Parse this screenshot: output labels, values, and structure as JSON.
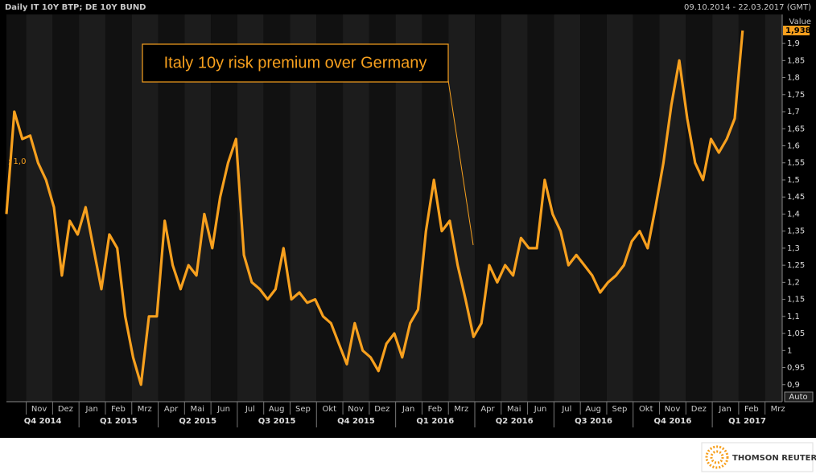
{
  "chart_data": {
    "type": "line",
    "title": "Daily IT 10Y BTP; DE 10Y BUND",
    "date_range": "09.10.2014 - 22.03.2017 (GMT)",
    "axis_title": "Value",
    "axis_mode": "Auto",
    "left_marker": "; 1,0",
    "annotation": "Italy 10y risk premium over Germany",
    "brand": "THOMSON REUTERS",
    "last_value_label": "1,938",
    "color": "#f7a01e",
    "xlim": [
      0,
      29.4
    ],
    "ylim": [
      0.85,
      1.985
    ],
    "x": [
      0,
      0.3,
      0.6,
      0.9,
      1.2,
      1.5,
      1.8,
      2.1,
      2.4,
      2.7,
      3,
      3.3,
      3.6,
      3.9,
      4.2,
      4.5,
      4.8,
      5.1,
      5.4,
      5.7,
      6,
      6.3,
      6.6,
      6.9,
      7.2,
      7.5,
      7.8,
      8.1,
      8.4,
      8.7,
      9,
      9.3,
      9.6,
      9.9,
      10.2,
      10.5,
      10.8,
      11.1,
      11.4,
      11.7,
      12,
      12.3,
      12.6,
      12.9,
      13.2,
      13.5,
      13.8,
      14.1,
      14.4,
      14.7,
      15,
      15.3,
      15.6,
      15.9,
      16.2,
      16.5,
      16.8,
      17.1,
      17.4,
      17.7,
      18,
      18.3,
      18.6,
      18.9,
      19.2,
      19.5,
      19.8,
      20.1,
      20.4,
      20.7,
      21,
      21.3,
      21.6,
      21.9,
      22.2,
      22.5,
      22.8,
      23.1,
      23.4,
      23.7,
      24,
      24.3,
      24.6,
      24.9,
      25.2,
      25.5,
      25.8,
      26.1,
      26.4,
      26.7,
      27,
      27.3,
      27.6,
      27.9
    ],
    "values": [
      1.4,
      1.7,
      1.62,
      1.63,
      1.55,
      1.5,
      1.42,
      1.22,
      1.38,
      1.34,
      1.42,
      1.3,
      1.18,
      1.34,
      1.3,
      1.1,
      0.98,
      0.9,
      1.1,
      1.1,
      1.38,
      1.25,
      1.18,
      1.25,
      1.22,
      1.4,
      1.3,
      1.45,
      1.55,
      1.62,
      1.28,
      1.2,
      1.18,
      1.15,
      1.18,
      1.3,
      1.15,
      1.17,
      1.14,
      1.15,
      1.1,
      1.08,
      1.02,
      0.96,
      1.08,
      1.0,
      0.98,
      0.94,
      1.02,
      1.05,
      0.98,
      1.08,
      1.12,
      1.35,
      1.5,
      1.35,
      1.38,
      1.25,
      1.15,
      1.04,
      1.08,
      1.25,
      1.2,
      1.25,
      1.22,
      1.33,
      1.3,
      1.3,
      1.5,
      1.4,
      1.35,
      1.25,
      1.28,
      1.25,
      1.22,
      1.17,
      1.2,
      1.22,
      1.25,
      1.32,
      1.35,
      1.3,
      1.42,
      1.55,
      1.72,
      1.85,
      1.68,
      1.55,
      1.5,
      1.62,
      1.58,
      1.62,
      1.68,
      1.938
    ],
    "yticks": [
      {
        "value": 0.9,
        "label": "0,9"
      },
      {
        "value": 0.95,
        "label": "0,95"
      },
      1,
      {
        "value": 1.05,
        "label": "1,05"
      },
      {
        "value": 1.1,
        "label": "1,1"
      },
      {
        "value": 1.15,
        "label": "1,15"
      },
      {
        "value": 1.2,
        "label": "1,2"
      },
      {
        "value": 1.25,
        "label": "1,25"
      },
      {
        "value": 1.3,
        "label": "1,3"
      },
      {
        "value": 1.35,
        "label": "1,35"
      },
      {
        "value": 1.4,
        "label": "1,4"
      },
      {
        "value": 1.45,
        "label": "1,45"
      },
      {
        "value": 1.5,
        "label": "1,5"
      },
      {
        "value": 1.55,
        "label": "1,55"
      },
      {
        "value": 1.6,
        "label": "1,6"
      },
      {
        "value": 1.65,
        "label": "1,65"
      },
      {
        "value": 1.7,
        "label": "1,7"
      },
      {
        "value": 1.75,
        "label": "1,75"
      },
      {
        "value": 1.8,
        "label": "1,8"
      },
      {
        "value": 1.85,
        "label": "1,85"
      },
      {
        "value": 1.9,
        "label": "1,9"
      }
    ],
    "xticks": [
      {
        "value": 0.75,
        "label": "Nov"
      },
      {
        "value": 1.75,
        "label": "Dez"
      },
      {
        "value": 2.75,
        "label": "Jan"
      },
      {
        "value": 3.75,
        "label": "Feb"
      },
      {
        "value": 4.75,
        "label": "Mrz"
      },
      {
        "value": 5.75,
        "label": "Apr"
      },
      {
        "value": 6.75,
        "label": "Mai"
      },
      {
        "value": 7.75,
        "label": "Jun"
      },
      {
        "value": 8.75,
        "label": "Jul"
      },
      {
        "value": 9.75,
        "label": "Aug"
      },
      {
        "value": 10.75,
        "label": "Sep"
      },
      {
        "value": 11.75,
        "label": "Okt"
      },
      {
        "value": 12.75,
        "label": "Nov"
      },
      {
        "value": 13.75,
        "label": "Dez"
      },
      {
        "value": 14.75,
        "label": "Jan"
      },
      {
        "value": 15.75,
        "label": "Feb"
      },
      {
        "value": 16.75,
        "label": "Mrz"
      },
      {
        "value": 17.75,
        "label": "Apr"
      },
      {
        "value": 18.75,
        "label": "Mai"
      },
      {
        "value": 19.75,
        "label": "Jun"
      },
      {
        "value": 20.75,
        "label": "Jul"
      },
      {
        "value": 21.75,
        "label": "Aug"
      },
      {
        "value": 22.75,
        "label": "Sep"
      },
      {
        "value": 23.75,
        "label": "Okt"
      },
      {
        "value": 24.75,
        "label": "Nov"
      },
      {
        "value": 25.75,
        "label": "Dez"
      },
      {
        "value": 26.75,
        "label": "Jan"
      },
      {
        "value": 27.75,
        "label": "Feb"
      },
      {
        "value": 28.75,
        "label": "Mrz"
      }
    ],
    "quarters": [
      {
        "value": -0.25,
        "label": "Q4 2014"
      },
      {
        "value": 2.75,
        "label": "Q1 2015"
      },
      {
        "value": 5.75,
        "label": "Q2 2015"
      },
      {
        "value": 8.75,
        "label": "Q3 2015"
      },
      {
        "value": 11.75,
        "label": "Q4 2015"
      },
      {
        "value": 14.75,
        "label": "Q1 2016"
      },
      {
        "value": 17.75,
        "label": "Q2 2016"
      },
      {
        "value": 20.75,
        "label": "Q3 2016"
      },
      {
        "value": 23.75,
        "label": "Q4 2016"
      },
      {
        "value": 26.75,
        "label": "Q1 2017"
      }
    ]
  }
}
